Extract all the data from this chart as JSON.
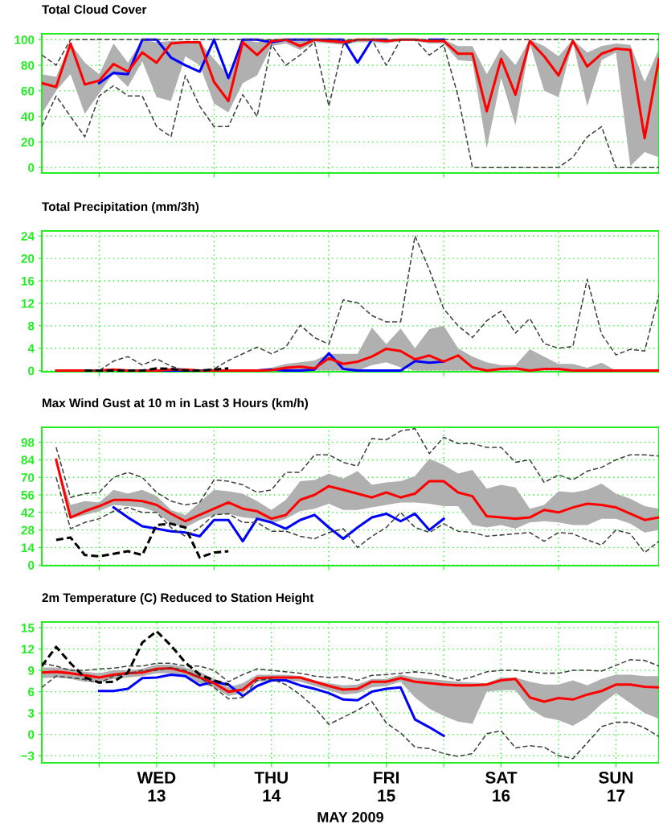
{
  "chart_data": [
    {
      "type": "line",
      "title": "Total Cloud Cover",
      "x": [
        "2009-05-12T12:00",
        "2009-05-12T15:00",
        "2009-05-12T18:00",
        "2009-05-12T21:00",
        "2009-05-13T00:00",
        "2009-05-13T03:00",
        "2009-05-13T06:00",
        "2009-05-13T09:00",
        "2009-05-13T12:00",
        "2009-05-13T15:00",
        "2009-05-13T18:00",
        "2009-05-13T21:00",
        "2009-05-14T00:00",
        "2009-05-14T03:00",
        "2009-05-14T06:00",
        "2009-05-14T09:00",
        "2009-05-14T12:00",
        "2009-05-14T15:00",
        "2009-05-14T18:00",
        "2009-05-14T21:00",
        "2009-05-15T00:00",
        "2009-05-15T03:00",
        "2009-05-15T06:00",
        "2009-05-15T09:00",
        "2009-05-15T12:00",
        "2009-05-15T15:00",
        "2009-05-15T18:00",
        "2009-05-15T21:00",
        "2009-05-16T00:00",
        "2009-05-16T03:00",
        "2009-05-16T06:00",
        "2009-05-16T09:00",
        "2009-05-16T12:00",
        "2009-05-16T15:00",
        "2009-05-16T18:00",
        "2009-05-16T21:00",
        "2009-05-17T00:00",
        "2009-05-17T03:00",
        "2009-05-17T06:00",
        "2009-05-17T09:00",
        "2009-05-17T12:00",
        "2009-05-17T15:00",
        "2009-05-17T18:00",
        "2009-05-17T21:00"
      ],
      "xlim": [
        "2009-05-12T12:00",
        "2009-05-17T21:00"
      ],
      "ylim": [
        -4.3,
        104.6
      ],
      "yticks": [
        0,
        20,
        40,
        60,
        80,
        100
      ],
      "xticks": [
        {
          "value": "2009-05-13T00:00",
          "label": null
        },
        {
          "value": "2009-05-14T00:00",
          "label": null
        },
        {
          "value": "2009-05-15T00:00",
          "label": null
        },
        {
          "value": "2009-05-16T00:00",
          "label": null
        },
        {
          "value": "2009-05-17T00:00",
          "label": null
        }
      ],
      "tick_labels": "y",
      "grid": true,
      "series": [
        {
          "color": "#404040",
          "line_style": "dashed",
          "values": [
            88,
            80,
            100,
            100,
            100,
            100,
            100,
            100,
            100,
            100,
            100,
            100,
            100,
            100,
            100,
            100,
            100,
            100,
            100,
            100,
            100,
            100,
            100,
            100,
            100,
            100,
            100,
            100,
            100,
            100,
            100,
            100,
            100,
            100,
            100,
            100,
            100,
            100,
            100,
            100,
            100,
            100,
            100,
            100
          ]
        },
        {
          "color": "#404040",
          "line_style": "dashed",
          "values": [
            32,
            56,
            40,
            24,
            56,
            64,
            56,
            56,
            32,
            24,
            72,
            48,
            32,
            32,
            57,
            40,
            96,
            80,
            88,
            98,
            48,
            96,
            100,
            100,
            80,
            100,
            100,
            88,
            96,
            56,
            0,
            0,
            0,
            0,
            0,
            0,
            0,
            8,
            24,
            32,
            0,
            0,
            0,
            0
          ]
        },
        {
          "color": "#0000ff",
          "values": [
            null,
            null,
            null,
            null,
            66,
            74,
            73,
            100,
            100,
            86,
            80,
            75,
            100,
            70,
            100,
            100,
            98,
            100,
            100,
            100,
            100,
            100,
            82,
            100,
            100,
            null,
            null,
            100,
            100,
            null,
            null,
            null,
            null,
            null,
            null,
            null,
            null,
            null,
            null,
            null,
            null,
            null,
            null,
            null
          ]
        },
        {
          "color": "#ff0000",
          "values": [
            66,
            63,
            97,
            65,
            68,
            81,
            75,
            90,
            82,
            97,
            98,
            98,
            67,
            52,
            98,
            88,
            99,
            100,
            95,
            100,
            99,
            98,
            100,
            100,
            99,
            100,
            100,
            99,
            99,
            89,
            89,
            44,
            85,
            57,
            99,
            87,
            72,
            99,
            79,
            89,
            93,
            92,
            23,
            85
          ],
          "lower": [
            42,
            60,
            73,
            42,
            58,
            74,
            63,
            83,
            55,
            52,
            87,
            80,
            50,
            43,
            66,
            72,
            95,
            97,
            92,
            98,
            97,
            96,
            98,
            98,
            97,
            99,
            99,
            97,
            97,
            84,
            83,
            15,
            70,
            33,
            97,
            60,
            55,
            98,
            48,
            84,
            90,
            1,
            12,
            8
          ],
          "upper": [
            73,
            71,
            97,
            82,
            73,
            97,
            82,
            100,
            98,
            99,
            99,
            98,
            85,
            72,
            100,
            98,
            100,
            100,
            99,
            100,
            100,
            100,
            100,
            100,
            100,
            100,
            100,
            100,
            100,
            95,
            95,
            73,
            93,
            80,
            100,
            95,
            87,
            100,
            90,
            95,
            97,
            96,
            67,
            93
          ]
        }
      ]
    },
    {
      "type": "line",
      "title": "Total Precipitation (mm/3h)",
      "x": [
        "2009-05-12T15:00",
        "2009-05-12T18:00",
        "2009-05-12T21:00",
        "2009-05-13T00:00",
        "2009-05-13T03:00",
        "2009-05-13T06:00",
        "2009-05-13T09:00",
        "2009-05-13T12:00",
        "2009-05-13T15:00",
        "2009-05-13T18:00",
        "2009-05-13T21:00",
        "2009-05-14T00:00",
        "2009-05-14T03:00",
        "2009-05-14T06:00",
        "2009-05-14T09:00",
        "2009-05-14T12:00",
        "2009-05-14T15:00",
        "2009-05-14T18:00",
        "2009-05-14T21:00",
        "2009-05-15T00:00",
        "2009-05-15T03:00",
        "2009-05-15T06:00",
        "2009-05-15T09:00",
        "2009-05-15T12:00",
        "2009-05-15T15:00",
        "2009-05-15T18:00",
        "2009-05-15T21:00",
        "2009-05-16T00:00",
        "2009-05-16T03:00",
        "2009-05-16T06:00",
        "2009-05-16T09:00",
        "2009-05-16T12:00",
        "2009-05-16T15:00",
        "2009-05-16T18:00",
        "2009-05-16T21:00",
        "2009-05-17T00:00",
        "2009-05-17T03:00",
        "2009-05-17T06:00",
        "2009-05-17T09:00",
        "2009-05-17T12:00",
        "2009-05-17T15:00",
        "2009-05-17T18:00",
        "2009-05-17T21:00"
      ],
      "xlim": [
        "2009-05-12T12:00",
        "2009-05-17T21:00"
      ],
      "ylim": [
        -0.2,
        24.9
      ],
      "yticks": [
        0,
        4,
        8,
        12,
        16,
        20,
        24
      ],
      "xticks": [
        {
          "value": "2009-05-13T00:00",
          "label": null
        },
        {
          "value": "2009-05-14T00:00",
          "label": null
        },
        {
          "value": "2009-05-15T00:00",
          "label": null
        },
        {
          "value": "2009-05-16T00:00",
          "label": null
        },
        {
          "value": "2009-05-17T00:00",
          "label": null
        }
      ],
      "tick_labels": "y",
      "grid": true,
      "series": [
        {
          "color": "#404040",
          "line_style": "dashed",
          "values": [
            null,
            null,
            0,
            0,
            1.7,
            2.5,
            1.0,
            2.1,
            0.8,
            0,
            0,
            0.3,
            1.8,
            3.0,
            4.2,
            3.0,
            4.2,
            8.1,
            5.9,
            4.7,
            12.6,
            12.1,
            9.8,
            8.7,
            8.7,
            24,
            18,
            11,
            8,
            5.9,
            8.9,
            10.6,
            6.7,
            9.3,
            4.8,
            4.0,
            4.3,
            16.3,
            6.5,
            2.8,
            3.8,
            3.5,
            13.5
          ]
        },
        {
          "color": "#000000",
          "line_style": "dashed",
          "values": [
            null,
            null,
            0,
            0,
            0,
            0,
            0,
            0.4,
            0.3,
            0,
            0,
            0.2,
            0.4,
            null,
            null,
            null,
            null,
            null,
            null,
            null,
            null,
            null,
            null,
            null,
            null,
            null,
            null,
            null,
            null,
            null,
            null,
            null,
            null,
            null,
            null,
            null,
            null,
            null,
            null,
            null,
            null,
            null,
            null
          ]
        },
        {
          "color": "#0000ff",
          "values": [
            null,
            null,
            null,
            null,
            null,
            null,
            null,
            0,
            0,
            0,
            0,
            0,
            0,
            0,
            0,
            0.2,
            0,
            0,
            0.2,
            3.1,
            0.3,
            0,
            0,
            0,
            0,
            1.7,
            1.4,
            1.6,
            null,
            null,
            null,
            null,
            null,
            null,
            null,
            null,
            null,
            null,
            null,
            null,
            null,
            null,
            null
          ]
        },
        {
          "color": "#ff0000",
          "values": [
            0,
            0,
            0,
            0,
            0.2,
            0,
            0,
            0,
            0.2,
            0.2,
            0,
            0,
            0,
            0,
            0,
            0.1,
            0.5,
            0.7,
            0.4,
            2.2,
            1.2,
            1.6,
            2.5,
            3.9,
            3.5,
            2.0,
            2.7,
            1.6,
            2.7,
            0.6,
            0,
            0.3,
            0.4,
            0,
            0.3,
            0.3,
            0,
            0,
            0,
            0,
            0,
            0,
            0
          ],
          "lower": [
            0,
            0,
            0,
            0,
            0,
            0,
            0,
            0,
            0,
            0,
            0,
            0,
            0,
            0,
            0,
            0,
            0,
            0,
            0,
            0,
            0,
            0,
            1.0,
            1.5,
            0.6,
            0,
            0,
            0,
            0,
            0,
            0,
            0,
            0,
            0,
            0,
            0,
            0,
            0,
            0,
            0,
            0,
            0,
            0
          ],
          "upper": [
            0,
            0,
            0,
            0,
            0.2,
            0,
            0,
            0,
            0.2,
            0.2,
            0,
            0,
            0,
            0,
            0.2,
            0.5,
            1.2,
            1.5,
            1.8,
            3.0,
            3.0,
            3.0,
            7.7,
            4.7,
            7.5,
            4.0,
            7.4,
            8.0,
            4.0,
            2.5,
            1.5,
            1.0,
            1.0,
            3.8,
            2.5,
            1.2,
            1.2,
            0.5,
            1.4,
            0,
            0,
            0,
            0
          ]
        }
      ]
    },
    {
      "type": "line",
      "title": "Max Wind Gust at 10 m in Last 3 Hours (km/h)",
      "x": [
        "2009-05-12T15:00",
        "2009-05-12T18:00",
        "2009-05-12T21:00",
        "2009-05-13T00:00",
        "2009-05-13T03:00",
        "2009-05-13T06:00",
        "2009-05-13T09:00",
        "2009-05-13T12:00",
        "2009-05-13T15:00",
        "2009-05-13T18:00",
        "2009-05-13T21:00",
        "2009-05-14T00:00",
        "2009-05-14T03:00",
        "2009-05-14T06:00",
        "2009-05-14T09:00",
        "2009-05-14T12:00",
        "2009-05-14T15:00",
        "2009-05-14T18:00",
        "2009-05-14T21:00",
        "2009-05-15T00:00",
        "2009-05-15T03:00",
        "2009-05-15T06:00",
        "2009-05-15T09:00",
        "2009-05-15T12:00",
        "2009-05-15T15:00",
        "2009-05-15T18:00",
        "2009-05-15T21:00",
        "2009-05-16T00:00",
        "2009-05-16T03:00",
        "2009-05-16T06:00",
        "2009-05-16T09:00",
        "2009-05-16T12:00",
        "2009-05-16T15:00",
        "2009-05-16T18:00",
        "2009-05-16T21:00",
        "2009-05-17T00:00",
        "2009-05-17T03:00",
        "2009-05-17T06:00",
        "2009-05-17T09:00",
        "2009-05-17T12:00",
        "2009-05-17T15:00",
        "2009-05-17T18:00",
        "2009-05-17T21:00"
      ],
      "xlim": [
        "2009-05-12T12:00",
        "2009-05-17T21:00"
      ],
      "ylim": [
        -0.5,
        110
      ],
      "yticks": [
        0,
        14,
        28,
        42,
        56,
        70,
        84,
        98
      ],
      "xticks": [
        {
          "value": "2009-05-13T00:00",
          "label": null
        },
        {
          "value": "2009-05-14T00:00",
          "label": null
        },
        {
          "value": "2009-05-15T00:00",
          "label": null
        },
        {
          "value": "2009-05-16T00:00",
          "label": null
        },
        {
          "value": "2009-05-17T00:00",
          "label": null
        }
      ],
      "tick_labels": "y",
      "grid": true,
      "series": [
        {
          "color": "#404040",
          "line_style": "dashed",
          "values": [
            94,
            54,
            57,
            58,
            70,
            74,
            70,
            58,
            51,
            48,
            50,
            68,
            67,
            64,
            58,
            60,
            74,
            74,
            88,
            88,
            82,
            79,
            101,
            100,
            107,
            109,
            89,
            102,
            97,
            97,
            94,
            94,
            82,
            84,
            66,
            72,
            68,
            75,
            78,
            84,
            88,
            88,
            87
          ]
        },
        {
          "color": "#404040",
          "line_style": "dashed",
          "values": [
            70,
            29,
            34,
            37,
            43,
            46,
            42,
            42,
            30,
            23,
            30,
            40,
            41,
            34,
            34,
            27,
            27,
            23,
            21,
            26,
            29,
            14,
            23,
            30,
            42,
            30,
            26,
            33,
            27,
            26,
            23,
            24,
            25,
            26,
            19,
            26,
            25,
            20,
            16,
            28,
            25,
            10,
            19
          ]
        },
        {
          "color": "#000000",
          "line_style": "dashed",
          "values": [
            20,
            22,
            8,
            7,
            9,
            11,
            8,
            32,
            33,
            30,
            6,
            10,
            11,
            null,
            null,
            null,
            null,
            null,
            null,
            null,
            null,
            null,
            null,
            null,
            null,
            null,
            null,
            null,
            null,
            null,
            null,
            null,
            null,
            null,
            null,
            null,
            null,
            null,
            null,
            null,
            null,
            null,
            null
          ]
        },
        {
          "color": "#0000ff",
          "values": [
            null,
            null,
            null,
            null,
            46,
            38,
            31,
            29,
            27,
            26,
            23,
            36,
            36,
            19,
            37,
            34,
            29,
            36,
            40,
            30,
            21,
            30,
            38,
            41,
            35,
            41,
            28,
            37,
            null,
            null,
            null,
            null,
            null,
            null,
            null,
            null,
            null,
            null,
            null,
            null,
            null,
            null,
            null
          ]
        },
        {
          "color": "#ff0000",
          "values": [
            84,
            38,
            43,
            47,
            52,
            52,
            51,
            48,
            41,
            35,
            40,
            45,
            50,
            45,
            43,
            37,
            40,
            52,
            56,
            63,
            60,
            57,
            54,
            58,
            54,
            57,
            67,
            67,
            58,
            55,
            39,
            38,
            37,
            38,
            44,
            42,
            46,
            49,
            48,
            46,
            41,
            36,
            38
          ],
          "lower": [
            84,
            37,
            40,
            43,
            48,
            47,
            46,
            42,
            33,
            30,
            36,
            40,
            41,
            38,
            37,
            33,
            37,
            43,
            45,
            49,
            44,
            44,
            46,
            48,
            50,
            50,
            49,
            47,
            47,
            32,
            30,
            32,
            29,
            34,
            35,
            34,
            32,
            32,
            37,
            37,
            33,
            26,
            28
          ],
          "upper": [
            84,
            48,
            51,
            50,
            60,
            57,
            60,
            55,
            44,
            40,
            50,
            60,
            59,
            57,
            51,
            44,
            52,
            67,
            68,
            73,
            69,
            75,
            64,
            66,
            67,
            71,
            85,
            80,
            73,
            76,
            61,
            64,
            62,
            45,
            48,
            59,
            58,
            60,
            65,
            57,
            53,
            47,
            45
          ]
        }
      ]
    },
    {
      "type": "line",
      "title": "2m Temperature (C) Reduced to Station Height",
      "xlabel": "MAY 2009",
      "x": [
        "2009-05-12T12:00",
        "2009-05-12T15:00",
        "2009-05-12T18:00",
        "2009-05-12T21:00",
        "2009-05-13T00:00",
        "2009-05-13T03:00",
        "2009-05-13T06:00",
        "2009-05-13T09:00",
        "2009-05-13T12:00",
        "2009-05-13T15:00",
        "2009-05-13T18:00",
        "2009-05-13T21:00",
        "2009-05-14T00:00",
        "2009-05-14T03:00",
        "2009-05-14T06:00",
        "2009-05-14T09:00",
        "2009-05-14T12:00",
        "2009-05-14T15:00",
        "2009-05-14T18:00",
        "2009-05-14T21:00",
        "2009-05-15T00:00",
        "2009-05-15T03:00",
        "2009-05-15T06:00",
        "2009-05-15T09:00",
        "2009-05-15T12:00",
        "2009-05-15T15:00",
        "2009-05-15T18:00",
        "2009-05-15T21:00",
        "2009-05-16T00:00",
        "2009-05-16T03:00",
        "2009-05-16T06:00",
        "2009-05-16T09:00",
        "2009-05-16T12:00",
        "2009-05-16T15:00",
        "2009-05-16T18:00",
        "2009-05-16T21:00",
        "2009-05-17T00:00",
        "2009-05-17T03:00",
        "2009-05-17T06:00",
        "2009-05-17T09:00",
        "2009-05-17T12:00",
        "2009-05-17T15:00",
        "2009-05-17T18:00",
        "2009-05-17T21:00"
      ],
      "xlim": [
        "2009-05-12T12:00",
        "2009-05-17T21:00"
      ],
      "ylim": [
        -4.0,
        15.8
      ],
      "yticks": [
        -3,
        0,
        3,
        6,
        9,
        12,
        15
      ],
      "xticks": [
        {
          "value": "2009-05-13T00:00",
          "label": null
        },
        {
          "value": "2009-05-13T12:00",
          "label": "WED\n13"
        },
        {
          "value": "2009-05-14T00:00",
          "label": null
        },
        {
          "value": "2009-05-14T12:00",
          "label": "THU\n14"
        },
        {
          "value": "2009-05-15T00:00",
          "label": null
        },
        {
          "value": "2009-05-15T12:00",
          "label": "FRI\n15"
        },
        {
          "value": "2009-05-16T00:00",
          "label": null
        },
        {
          "value": "2009-05-16T12:00",
          "label": "SAT\n16"
        },
        {
          "value": "2009-05-17T00:00",
          "label": null
        },
        {
          "value": "2009-05-17T12:00",
          "label": "SUN\n17"
        }
      ],
      "grid": true,
      "series": [
        {
          "color": "#404040",
          "line_style": "dashed",
          "values": [
            10.0,
            9.6,
            9.0,
            9.0,
            9.2,
            9.3,
            9.6,
            9.6,
            10.0,
            10.0,
            9.6,
            9.6,
            9.0,
            7.4,
            8.4,
            9.2,
            9.0,
            8.8,
            8.6,
            8.2,
            8.0,
            8.1,
            7.6,
            8.3,
            8.4,
            8.6,
            8.8,
            8.6,
            8.2,
            7.6,
            8.1,
            8.8,
            9.0,
            9.0,
            8.8,
            8.6,
            8.6,
            9.0,
            9.0,
            8.9,
            9.7,
            10.5,
            10.4,
            9.6
          ]
        },
        {
          "color": "#404040",
          "line_style": "dashed",
          "values": [
            6.6,
            8.2,
            8.0,
            7.7,
            7.2,
            8.2,
            8.5,
            9.0,
            9.0,
            9.4,
            9.0,
            8.0,
            6.6,
            5.0,
            5.2,
            7.6,
            7.8,
            7.0,
            5.6,
            3.8,
            1.4,
            2.4,
            3.4,
            4.6,
            1.6,
            0.2,
            -1.8,
            -2.0,
            -2.7,
            -3.1,
            -2.7,
            0.1,
            0.5,
            -1.9,
            -1.6,
            -1.8,
            -3.0,
            -3.4,
            -1.2,
            1.1,
            1.7,
            1.7,
            0.9,
            -0.3
          ]
        },
        {
          "color": "#000000",
          "line_style": "dashed",
          "values": [
            9.6,
            12.3,
            10.0,
            8.0,
            7.3,
            7.4,
            8.7,
            12.9,
            14.5,
            12.5,
            10.1,
            8.4,
            7.6,
            7.0,
            null,
            null,
            null,
            null,
            null,
            null,
            null,
            null,
            null,
            null,
            null,
            null,
            null,
            null,
            null,
            null,
            null,
            null,
            null,
            null,
            null,
            null,
            null,
            null,
            null,
            null,
            null,
            null,
            null,
            null
          ]
        },
        {
          "color": "#0000ff",
          "values": [
            null,
            null,
            null,
            null,
            6.1,
            6.1,
            6.4,
            7.9,
            8.0,
            8.4,
            8.2,
            6.9,
            7.4,
            7.0,
            5.4,
            6.8,
            7.6,
            7.6,
            6.9,
            6.4,
            5.8,
            4.9,
            4.8,
            6.0,
            6.4,
            6.6,
            2.1,
            1.0,
            -0.2,
            null,
            null,
            null,
            null,
            null,
            null,
            null,
            null,
            null,
            null,
            null,
            null,
            null,
            null,
            null
          ]
        },
        {
          "color": "#ff0000",
          "values": [
            8.7,
            8.8,
            8.6,
            8.3,
            8.0,
            8.4,
            8.6,
            8.7,
            9.2,
            9.3,
            8.8,
            8.0,
            7.2,
            6.0,
            6.3,
            7.9,
            8.0,
            8.0,
            8.0,
            7.4,
            6.8,
            6.3,
            6.4,
            7.4,
            7.4,
            7.9,
            7.4,
            7.2,
            7.0,
            6.9,
            6.9,
            7.0,
            7.6,
            7.8,
            5.2,
            4.6,
            5.1,
            4.9,
            5.6,
            6.1,
            7.0,
            7.0,
            6.7,
            6.6
          ],
          "lower": [
            7.9,
            8.0,
            7.8,
            7.4,
            7.4,
            7.8,
            8.0,
            8.2,
            8.6,
            8.6,
            8.0,
            7.2,
            6.6,
            5.4,
            5.8,
            7.4,
            7.6,
            7.6,
            7.4,
            6.8,
            6.2,
            5.6,
            5.8,
            6.6,
            6.8,
            7.4,
            5.2,
            3.6,
            2.6,
            1.8,
            1.5,
            6.0,
            6.2,
            6.2,
            3.6,
            2.4,
            2.0,
            1.2,
            2.4,
            4.3,
            5.8,
            4.4,
            3.0,
            2.2
          ],
          "upper": [
            9.4,
            9.4,
            9.2,
            8.8,
            8.6,
            9.0,
            9.0,
            9.2,
            9.8,
            9.8,
            9.4,
            8.8,
            7.8,
            6.6,
            7.2,
            8.4,
            8.4,
            8.4,
            8.2,
            7.6,
            7.2,
            6.9,
            7.0,
            7.8,
            7.8,
            8.4,
            8.0,
            7.8,
            7.6,
            7.4,
            7.3,
            7.2,
            8.0,
            8.0,
            7.4,
            7.0,
            7.0,
            7.6,
            6.9,
            7.8,
            8.4,
            8.4,
            8.2,
            8.2
          ]
        }
      ]
    }
  ]
}
